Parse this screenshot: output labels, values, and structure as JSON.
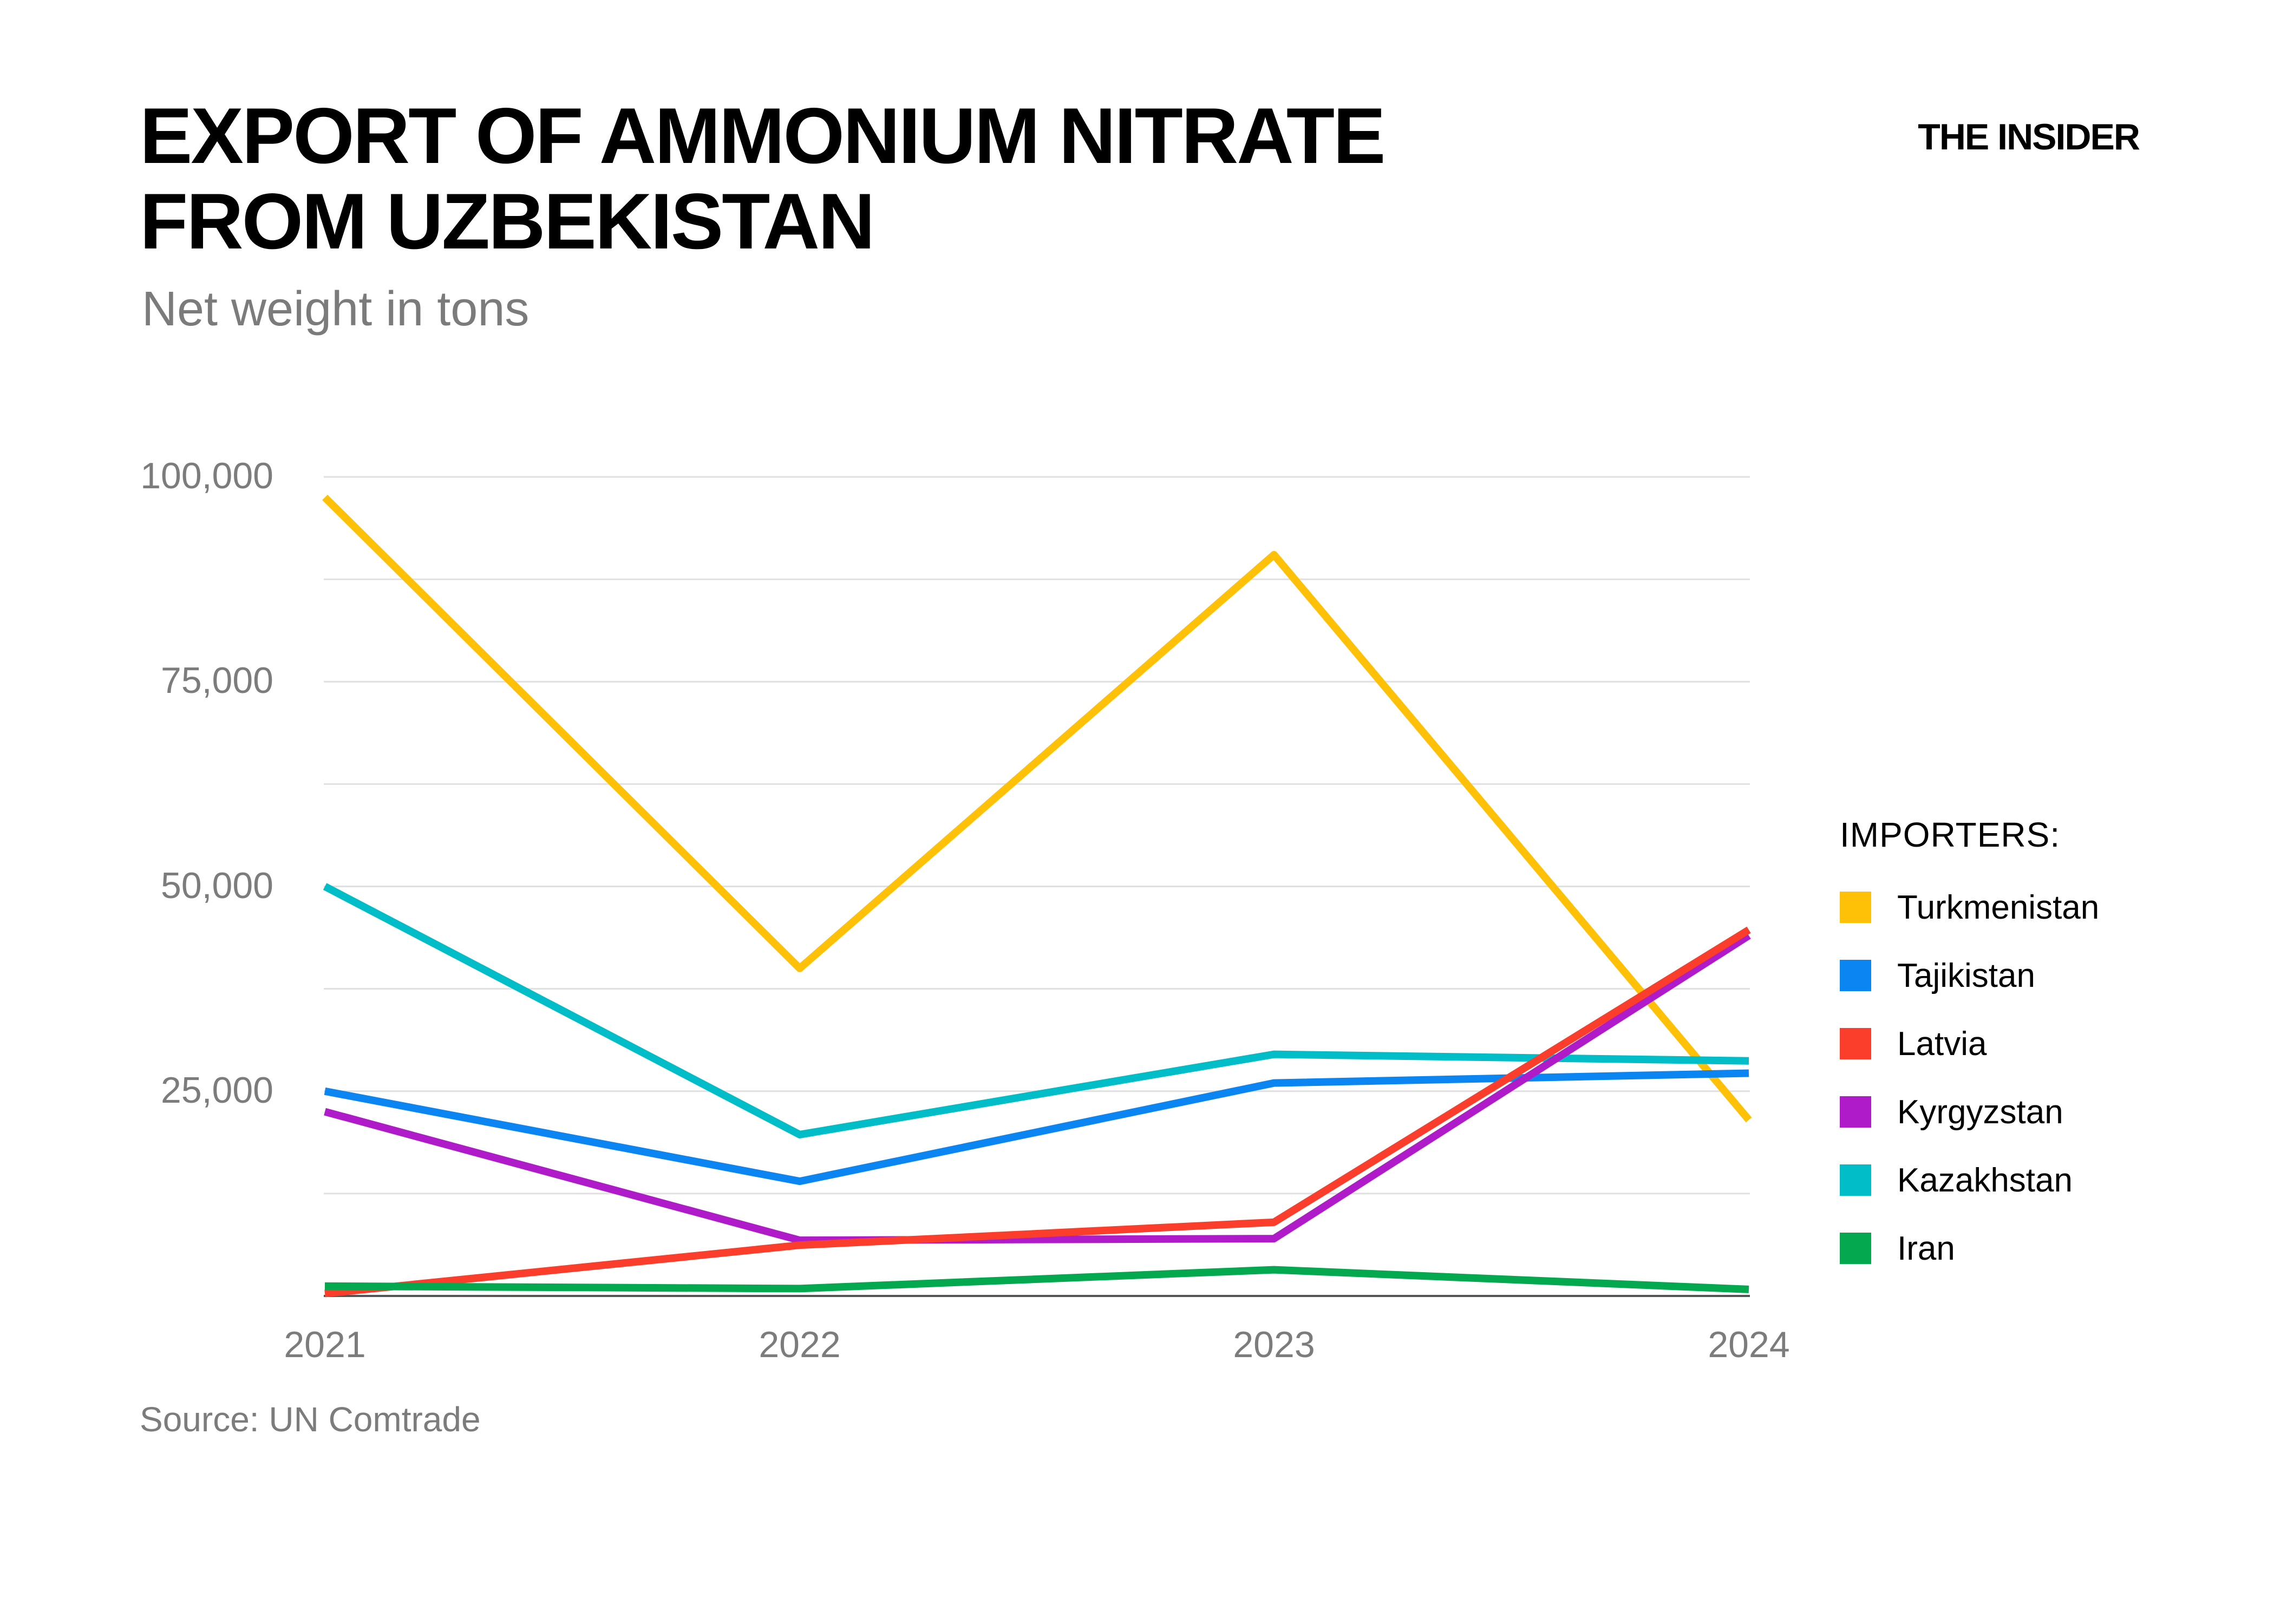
{
  "page": {
    "background": "#ffffff",
    "text_color": "#000000",
    "muted_color": "#7c7c7c",
    "gridline_color": "#e0e0e0",
    "axis_line_color": "#555555"
  },
  "header": {
    "title": "EXPORT OF AMMONIUM NITRATE\nFROM UZBEKISTAN",
    "subtitle": "Net weight in tons",
    "brand": "THE INSIDER"
  },
  "legend": {
    "title": "IMPORTERS:"
  },
  "source": {
    "label": "Source: UN Comtrade"
  },
  "chart_data": {
    "type": "line",
    "title": "Export of ammonium nitrate from Uzbekistan",
    "xlabel": "",
    "ylabel": "Net weight in tons",
    "x": [
      2021,
      2022,
      2023,
      2024
    ],
    "x_tick_labels": [
      "2021",
      "2022",
      "2023",
      "2024"
    ],
    "y_ticks": [
      25000,
      50000,
      75000,
      100000
    ],
    "y_tick_labels": [
      "25,000",
      "50,000",
      "75,000",
      "100,000"
    ],
    "ylim": [
      0,
      103000
    ],
    "grid": "horizontal minor+major every 12500",
    "legend_position": "right",
    "series": [
      {
        "name": "Turkmenistan",
        "color": "#FFC107",
        "values": [
          97500,
          40000,
          90500,
          21500
        ]
      },
      {
        "name": "Tajikistan",
        "color": "#0B85F2",
        "values": [
          25000,
          14000,
          26000,
          27200
        ]
      },
      {
        "name": "Latvia",
        "color": "#FB3E2C",
        "values": [
          300,
          6200,
          9000,
          44700
        ]
      },
      {
        "name": "Kyrgyzstan",
        "color": "#B01BC9",
        "values": [
          22500,
          6800,
          7000,
          44000
        ]
      },
      {
        "name": "Kazakhstan",
        "color": "#00BDC7",
        "values": [
          50000,
          19700,
          29500,
          28700
        ]
      },
      {
        "name": "Iran",
        "color": "#04A84E",
        "values": [
          1200,
          900,
          3200,
          800
        ]
      }
    ]
  }
}
